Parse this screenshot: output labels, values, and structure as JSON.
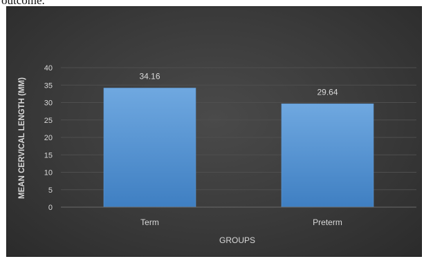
{
  "page": {
    "top_text": "outcome."
  },
  "chart_data": {
    "type": "bar",
    "title": "",
    "xlabel": "GROUPS",
    "ylabel": "MEAN CERVICAL LENGTH (MM)",
    "categories": [
      "Term",
      "Preterm"
    ],
    "values": [
      34.16,
      29.64
    ],
    "data_labels": [
      "34.16",
      "29.64"
    ],
    "ylim": [
      0,
      40
    ],
    "yticks": [
      0,
      5,
      10,
      15,
      20,
      25,
      30,
      35,
      40
    ],
    "grid": true,
    "legend": "none",
    "colors": {
      "bar_top": "#6fa8e0",
      "bar_bottom": "#3f7fc2",
      "background": "#3a3a3a",
      "text": "#d9d9d9",
      "grid": "#4f4f4f"
    }
  }
}
